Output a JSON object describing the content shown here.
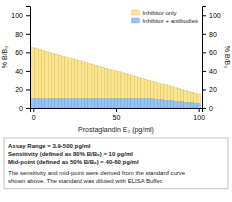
{
  "chart_data": {
    "type": "bar",
    "xlabel": "Prostaglandin E₂ (pg/ml)",
    "ylabel": "% B/B₀",
    "y2label": "% B/B₀",
    "x": [
      0,
      2,
      4,
      6,
      8,
      10,
      12,
      14,
      16,
      18,
      20,
      22,
      24,
      26,
      28,
      30,
      32,
      34,
      36,
      38,
      40,
      42,
      44,
      46,
      48,
      50,
      52,
      54,
      56,
      58,
      60,
      62,
      64,
      66,
      68,
      70,
      72,
      74,
      76,
      78,
      80,
      82,
      84,
      86,
      88,
      90,
      92,
      94,
      96,
      98,
      100
    ],
    "series": [
      {
        "name": "Inhibitor only",
        "color": "#fde68a",
        "values": [
          65,
          64,
          63,
          62,
          61,
          60,
          59,
          58,
          57,
          56,
          55,
          54,
          53,
          52,
          51,
          50,
          49,
          48,
          47,
          46,
          45,
          44,
          43,
          42,
          41,
          40,
          39,
          38,
          37,
          36,
          35,
          34,
          33,
          32,
          31,
          30,
          29,
          28,
          27,
          26,
          25,
          24,
          23,
          22,
          21,
          20,
          19,
          18,
          17,
          16,
          15
        ]
      },
      {
        "name": "Inhibitor + antibodies",
        "color": "#93c5fd",
        "values": [
          10,
          10,
          10,
          10,
          10,
          10,
          10,
          10,
          10,
          10,
          10,
          10,
          10,
          10,
          10,
          10,
          10,
          10,
          10,
          10,
          10,
          10,
          10,
          10,
          10,
          10,
          10,
          10,
          10,
          10,
          10,
          10,
          10,
          10,
          10,
          10,
          10,
          9,
          9,
          9,
          8,
          8,
          8,
          7,
          7,
          7,
          6,
          6,
          6,
          5,
          5
        ]
      }
    ],
    "stacked": false,
    "xlim": [
      -2,
      102
    ],
    "xticks": [
      0,
      50,
      100
    ],
    "ylim": [
      0,
      110
    ],
    "yticks": [
      0,
      20,
      40,
      60,
      80,
      100
    ],
    "y2lim": [
      0,
      110
    ],
    "y2ticks": [
      0,
      20,
      40,
      60,
      80,
      100
    ],
    "grid": false,
    "legend": "upper right",
    "annotations": [
      [
        "Assay Range = 3.9-500 pg/ml",
        "Sensitivity (defined as 80% B/B₀) = 10 pg/ml",
        "Mid-point (defined as 50% B/B₀) = 40-60 pg/ml"
      ],
      [
        "The sensitivity and mid-point were derived from the standard curve",
        "shown above. The standard was diluted with ELISA Buffer."
      ]
    ]
  }
}
